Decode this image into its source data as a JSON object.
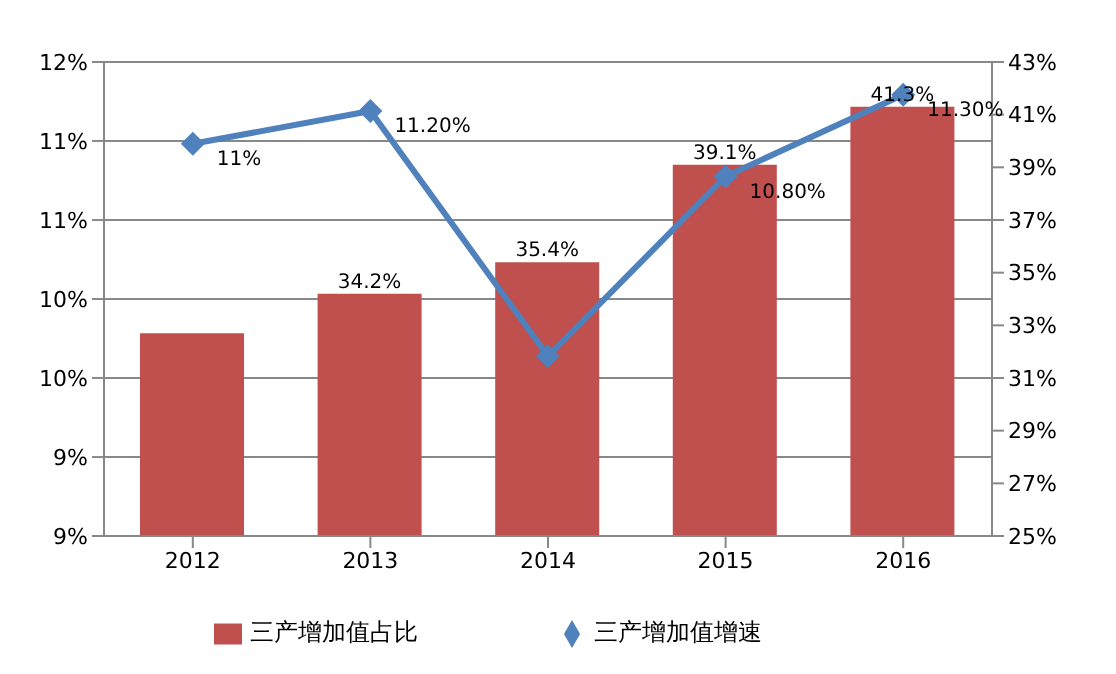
{
  "chart_data": {
    "type": "bar",
    "categories": [
      "2012",
      "2013",
      "2014",
      "2015",
      "2016"
    ],
    "series": [
      {
        "name": "三产增加值占比",
        "axis": "y2",
        "color": "#c0504d",
        "values": [
          32.7,
          34.2,
          35.4,
          39.1,
          41.3
        ],
        "value_labels": [
          null,
          "34.2%",
          "35.4%",
          "39.1%",
          "41.3%"
        ]
      },
      {
        "name": "三产增加值增速",
        "type": "line",
        "color": "#4f81bd",
        "values": [
          11.0,
          11.2,
          9.7,
          10.8,
          11.3
        ],
        "value_labels": [
          "11%",
          "11.20%",
          null,
          "10.80%",
          "11.30%"
        ]
      }
    ],
    "ylim": [
      8.6,
      11.5
    ],
    "yticks": [
      {
        "value": 8.6,
        "label": "9%"
      },
      {
        "value": 9.083,
        "label": "9%"
      },
      {
        "value": 9.567,
        "label": "10%"
      },
      {
        "value": 10.05,
        "label": "10%"
      },
      {
        "value": 10.533,
        "label": "11%"
      },
      {
        "value": 11.017,
        "label": "11%"
      },
      {
        "value": 11.5,
        "label": "12%"
      }
    ],
    "y2lim": [
      25,
      43
    ],
    "y2ticks": [
      {
        "value": 25,
        "label": "25%"
      },
      {
        "value": 27,
        "label": "27%"
      },
      {
        "value": 29,
        "label": "29%"
      },
      {
        "value": 31,
        "label": "31%"
      },
      {
        "value": 33,
        "label": "33%"
      },
      {
        "value": 35,
        "label": "35%"
      },
      {
        "value": 37,
        "label": "37%"
      },
      {
        "value": 39,
        "label": "39%"
      },
      {
        "value": 41,
        "label": "41%"
      },
      {
        "value": 43,
        "label": "43%"
      }
    ],
    "grid": "y",
    "legend": "bottom",
    "marker": "diamond"
  }
}
